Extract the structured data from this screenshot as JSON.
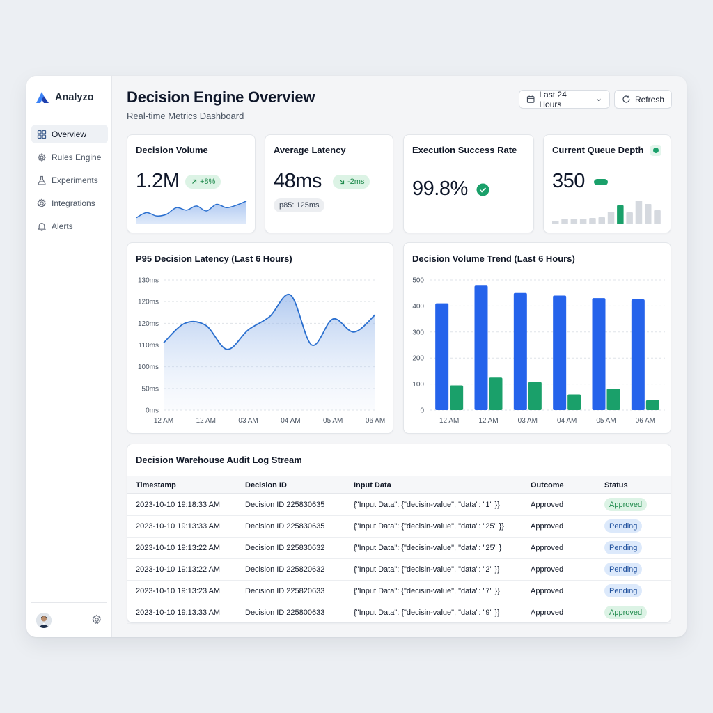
{
  "app": {
    "name": "Analyzo"
  },
  "sidebar": {
    "items": [
      {
        "label": "Overview",
        "icon": "grid-icon",
        "active": true
      },
      {
        "label": "Rules Engine",
        "icon": "gear-icon"
      },
      {
        "label": "Experiments",
        "icon": "flask-icon"
      },
      {
        "label": "Integrations",
        "icon": "cog-icon"
      },
      {
        "label": "Alerts",
        "icon": "bell-icon"
      }
    ]
  },
  "header": {
    "title": "Decision Engine Overview",
    "subtitle": "Real-time Metrics Dashboard",
    "range_label": "Last 24 Hours",
    "refresh_label": "Refresh"
  },
  "kpis": {
    "volume": {
      "title": "Decision Volume",
      "value": "1.2M",
      "delta": "+8%",
      "sparkline": [
        18,
        24,
        20,
        22,
        30,
        27,
        32,
        26,
        34,
        30,
        33,
        38
      ]
    },
    "latency": {
      "title": "Average Latency",
      "value": "48ms",
      "delta": "-2ms",
      "p95": "p85: 125ms"
    },
    "success": {
      "title": "Execution Success Rate",
      "value": "99.8%"
    },
    "queue": {
      "title": "Current Queue Depth",
      "value": "350",
      "bars": [
        5,
        8,
        8,
        8,
        9,
        10,
        18,
        27,
        17,
        34,
        29,
        20
      ]
    }
  },
  "colors": {
    "accent": "#2563eb",
    "green": "#1aa06a",
    "line": "#2a6fcf"
  },
  "latency_chart": {
    "title": "P95 Decision Latency (Last 6 Hours)",
    "y_ticks": [
      "0ms",
      "50ms",
      "100ms",
      "110ms",
      "120ms",
      "120ms",
      "130ms"
    ],
    "x_ticks": [
      "12 AM",
      "12 AM",
      "03 AM",
      "04 AM",
      "05 AM",
      "06 AM"
    ]
  },
  "volume_chart": {
    "title": "Decision Volume Trend (Last 6 Hours)",
    "y_ticks": [
      "0",
      "100",
      "200",
      "300",
      "400",
      "500"
    ],
    "x_ticks": [
      "12 AM",
      "12 AM",
      "03 AM",
      "04 AM",
      "05 AM",
      "06 AM"
    ]
  },
  "chart_data": [
    {
      "type": "area",
      "title": "P95 Decision Latency (Last 6 Hours)",
      "x": [
        "12 AM",
        "12 AM",
        "03 AM",
        "04 AM",
        "05 AM",
        "06 AM"
      ],
      "y_tick_labels": [
        "0ms",
        "50ms",
        "100ms",
        "110ms",
        "120ms",
        "120ms",
        "130ms"
      ],
      "series": [
        {
          "values_in_tick_units": [
            3.1,
            4.0,
            3.9,
            2.8,
            3.7,
            4.3,
            5.3,
            3.0,
            4.2,
            3.6,
            4.4
          ]
        }
      ]
    },
    {
      "type": "bar",
      "title": "Decision Volume Trend (Last 6 Hours)",
      "categories": [
        "12 AM",
        "12 AM",
        "03 AM",
        "04 AM",
        "05 AM",
        "06 AM"
      ],
      "ylim": [
        0,
        500
      ],
      "series": [
        {
          "color": "#2563eb",
          "values": [
            410,
            478,
            450,
            440,
            430,
            425
          ]
        },
        {
          "color": "#1aa06a",
          "values": [
            95,
            125,
            108,
            60,
            83,
            38
          ]
        }
      ]
    }
  ],
  "audit": {
    "title": "Decision Warehouse Audit Log Stream",
    "columns": [
      "Timestamp",
      "Decision ID",
      "Input Data",
      "Outcome",
      "Status"
    ],
    "rows": [
      {
        "ts": "2023-10-10 19:18:33 AM",
        "id": "Decision ID 225830635",
        "input": "{\"Input Data\": {\"decisin-value\", \"data\": \"1\" }}",
        "outcome": "Approved",
        "status": "Approved"
      },
      {
        "ts": "2023-10-10 19:13:33 AM",
        "id": "Decision ID 225830635",
        "input": "{\"Input Data\": {\"decisin-value\", \"data\": \"25\" }}",
        "outcome": "Approved",
        "status": "Pending"
      },
      {
        "ts": "2023-10-10 19:13:22 AM",
        "id": "Decision ID 225830632",
        "input": "{\"Input Data\": {\"decisin-value\", \"data\": \"25\" }",
        "outcome": "Approved",
        "status": "Pending"
      },
      {
        "ts": "2023-10-10 19:13:22 AM",
        "id": "Decision ID 225820632",
        "input": "{\"Input Data\": {\"decisin-value\", \"data\": \"2\" }}",
        "outcome": "Approved",
        "status": "Pending"
      },
      {
        "ts": "2023-10-10 19:13:23 AM",
        "id": "Decision ID 225820633",
        "input": "{\"Input Data\": {\"decisin-value\", \"data\": \"7\" }}",
        "outcome": "Approved",
        "status": "Pending"
      },
      {
        "ts": "2023-10-10 19:13:33 AM",
        "id": "Decision ID 225800633",
        "input": "{\"Input Data\": {\"decisin-value\", \"data\": \"9\" }}",
        "outcome": "Approved",
        "status": "Approved"
      }
    ]
  }
}
